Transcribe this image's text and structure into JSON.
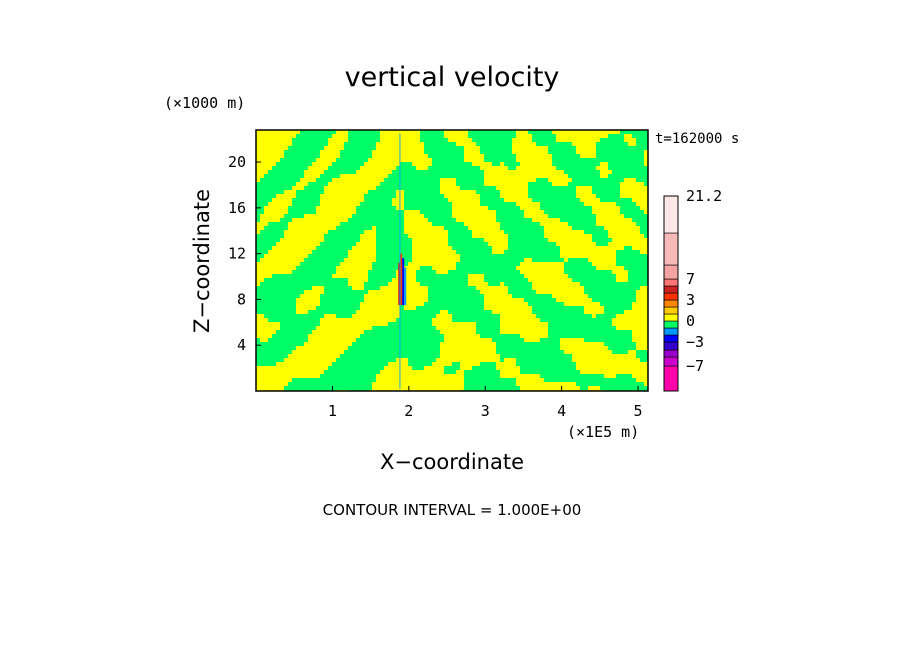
{
  "chart_data": {
    "type": "heatmap",
    "title": "vertical velocity",
    "xlabel": "X−coordinate",
    "ylabel": "Z−coordinate",
    "x_unit": "(×1E5 m)",
    "y_unit": "(×1000 m)",
    "time_label": "t=162000 s",
    "footer": "CONTOUR INTERVAL = 1.000E+00",
    "xlim": [
      0,
      5.13
    ],
    "ylim": [
      0,
      22.8
    ],
    "x_ticks": [
      1,
      2,
      3,
      4,
      5
    ],
    "y_ticks": [
      4,
      8,
      12,
      16,
      20
    ],
    "x_tick_labels": [
      "1",
      "2",
      "3",
      "4",
      "5"
    ],
    "y_tick_labels": [
      "4",
      "8",
      "12",
      "16",
      "20"
    ],
    "colorbar": {
      "labels": [
        {
          "value": 21.2,
          "text": "21.2"
        },
        {
          "value": 7,
          "text": "7"
        },
        {
          "value": 3,
          "text": "3"
        },
        {
          "value": 0,
          "text": "0"
        },
        {
          "value": -3,
          "text": "−3"
        },
        {
          "value": -7,
          "text": "−7"
        }
      ],
      "bands": [
        {
          "min": -10,
          "max": -7,
          "color": "#ff00aa"
        },
        {
          "min": -7,
          "max": -5,
          "color": "#cc00cc"
        },
        {
          "min": -5,
          "max": -4,
          "color": "#9900cc"
        },
        {
          "min": -4,
          "max": -3,
          "color": "#3300cc"
        },
        {
          "min": -3,
          "max": -2,
          "color": "#0000ff"
        },
        {
          "min": -2,
          "max": -1,
          "color": "#0099ff"
        },
        {
          "min": -1,
          "max": 0,
          "color": "#00ff66"
        },
        {
          "min": 0,
          "max": 1,
          "color": "#ffff00"
        },
        {
          "min": 1,
          "max": 2,
          "color": "#ffcc00"
        },
        {
          "min": 2,
          "max": 3,
          "color": "#ff8800"
        },
        {
          "min": 3,
          "max": 4,
          "color": "#ff3300"
        },
        {
          "min": 4,
          "max": 5,
          "color": "#cc2222"
        },
        {
          "min": 5,
          "max": 7,
          "color": "#ff7777"
        },
        {
          "min": 7,
          "max": 10,
          "color": "#f4a3a3"
        },
        {
          "min": 10,
          "max": 14,
          "color": "#f7b8b8"
        },
        {
          "min": 14,
          "max": 21.2,
          "color": "#fde8e8"
        }
      ]
    },
    "field": {
      "dominant_colors": [
        "#00ff66",
        "#ffff00"
      ],
      "description_levels": "mostly alternating weak updraft (0 to 1) and weak downdraft (-1 to 0) bands; strong updraft/downdraft core near x = 1.9 between z = 8 and 12"
    }
  }
}
